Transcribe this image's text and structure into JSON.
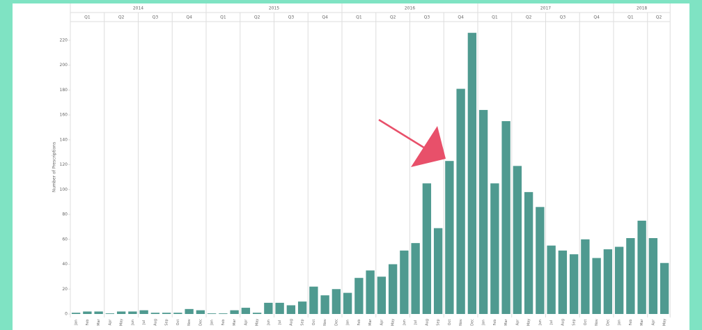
{
  "chart_data": {
    "type": "bar",
    "y_label": "Number of Prescriptions",
    "years": [
      "2014",
      "2015",
      "2016",
      "2017",
      "2018"
    ],
    "quarters": [
      "Q1",
      "Q2",
      "Q3",
      "Q4",
      "Q1",
      "Q2",
      "Q3",
      "Q4",
      "Q1",
      "Q2",
      "Q3",
      "Q4",
      "Q1",
      "Q2",
      "Q3",
      "Q4",
      "Q1",
      "Q2"
    ],
    "categories": [
      "Jan",
      "Feb",
      "Mar",
      "Apr",
      "May",
      "Jun",
      "Jul",
      "Aug",
      "Sep",
      "Oct",
      "Nov",
      "Dec",
      "Jan",
      "Feb",
      "Mar",
      "Apr",
      "May",
      "Jun",
      "Jul",
      "Aug",
      "Sep",
      "Oct",
      "Nov",
      "Dec",
      "Jan",
      "Feb",
      "Mar",
      "Apr",
      "May",
      "Jun",
      "Jul",
      "Aug",
      "Sep",
      "Oct",
      "Nov",
      "Dec",
      "Jan",
      "Feb",
      "Mar",
      "Apr",
      "May",
      "Jun",
      "Jul",
      "Aug",
      "Sep",
      "Oct",
      "Nov",
      "Dec",
      "Jan",
      "Feb",
      "Mar",
      "Apr",
      "May"
    ],
    "values": [
      1,
      2,
      2,
      0.5,
      2,
      2,
      3,
      1,
      1,
      1,
      4,
      3,
      0.5,
      0.5,
      3,
      5,
      1,
      9,
      9,
      7,
      10,
      22,
      15,
      20,
      17,
      29,
      35,
      30,
      40,
      51,
      57,
      105,
      69,
      123,
      181,
      226,
      164,
      105,
      155,
      119,
      98,
      86,
      55,
      51,
      48,
      60,
      45,
      52,
      54,
      61,
      75,
      61,
      41
    ],
    "color": "#4f9a90",
    "ylim": [
      0,
      230
    ],
    "yticks": [
      0,
      20,
      40,
      60,
      80,
      100,
      120,
      140,
      160,
      180,
      200,
      220
    ],
    "grid": false
  }
}
